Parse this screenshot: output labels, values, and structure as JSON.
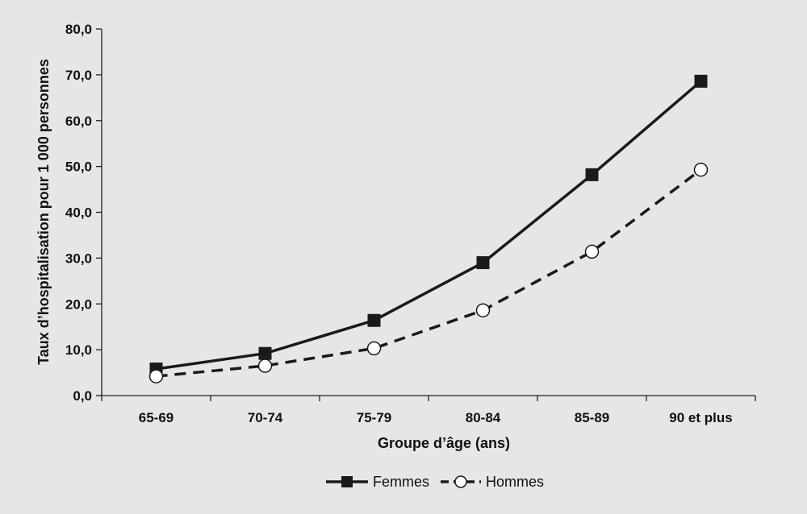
{
  "chart_data": {
    "type": "line",
    "categories": [
      "65-69",
      "70-74",
      "75-79",
      "80-84",
      "85-89",
      "90 et plus"
    ],
    "series": [
      {
        "name": "Femmes",
        "values": [
          5.8,
          9.2,
          16.4,
          29.0,
          48.2,
          68.6
        ],
        "line_style": "solid",
        "marker": "filled-square",
        "color": "#1a1a1a"
      },
      {
        "name": "Hommes",
        "values": [
          4.2,
          6.5,
          10.3,
          18.6,
          31.4,
          49.3
        ],
        "line_style": "dashed",
        "marker": "open-circle",
        "color": "#1a1a1a"
      }
    ],
    "xlabel": "Groupe d’âge (ans)",
    "ylabel": "Taux d’hospitalisation pour 1 000 personnes",
    "ylim": [
      0,
      80
    ],
    "yticks": [
      "0,0",
      "10,0",
      "20,0",
      "30,0",
      "40,0",
      "50,0",
      "60,0",
      "70,0",
      "80,0"
    ],
    "grid": false,
    "legend_position": "bottom-center"
  }
}
